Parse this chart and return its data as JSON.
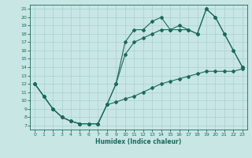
{
  "xlabel": "Humidex (Indice chaleur)",
  "bg_color": "#c8e6e4",
  "grid_color": "#aed4d2",
  "line_color": "#1a6b5a",
  "xlim": [
    -0.5,
    23.5
  ],
  "ylim": [
    6.5,
    21.5
  ],
  "xticks": [
    0,
    1,
    2,
    3,
    4,
    5,
    6,
    7,
    8,
    9,
    10,
    11,
    12,
    13,
    14,
    15,
    16,
    17,
    18,
    19,
    20,
    21,
    22,
    23
  ],
  "yticks": [
    7,
    8,
    9,
    10,
    11,
    12,
    13,
    14,
    15,
    16,
    17,
    18,
    19,
    20,
    21
  ],
  "curve1_x": [
    0,
    1,
    2,
    3,
    4,
    5,
    6,
    7,
    8,
    9,
    10,
    11,
    12,
    13,
    14,
    15,
    16,
    17,
    18,
    19,
    20,
    21,
    22,
    23
  ],
  "curve1_y": [
    12,
    10.5,
    9,
    8,
    7.5,
    7.2,
    7.2,
    7.2,
    9.5,
    12.0,
    17,
    18.5,
    18.5,
    19.5,
    20,
    18.5,
    19,
    18.5,
    18,
    21,
    20,
    18,
    16,
    14
  ],
  "curve2_x": [
    0,
    1,
    2,
    3,
    4,
    5,
    6,
    7,
    8,
    9,
    10,
    11,
    12,
    13,
    14,
    15,
    16,
    17,
    18,
    19,
    20,
    21,
    22,
    23
  ],
  "curve2_y": [
    12,
    10.5,
    9,
    8,
    7.5,
    7.2,
    7.2,
    7.2,
    9.5,
    12.0,
    15.5,
    17,
    17.5,
    18,
    18.5,
    18.5,
    18.5,
    18.5,
    18,
    21,
    20,
    18,
    16,
    14
  ],
  "curve3_x": [
    0,
    1,
    2,
    3,
    4,
    5,
    6,
    7,
    8,
    9,
    10,
    11,
    12,
    13,
    14,
    15,
    16,
    17,
    18,
    19,
    20,
    21,
    22,
    23
  ],
  "curve3_y": [
    12,
    10.5,
    9,
    8,
    7.5,
    7.2,
    7.2,
    7.2,
    9.5,
    9.8,
    10.2,
    10.5,
    11.0,
    11.5,
    12.0,
    12.3,
    12.6,
    12.9,
    13.2,
    13.5,
    13.5,
    13.5,
    13.5,
    13.8
  ]
}
